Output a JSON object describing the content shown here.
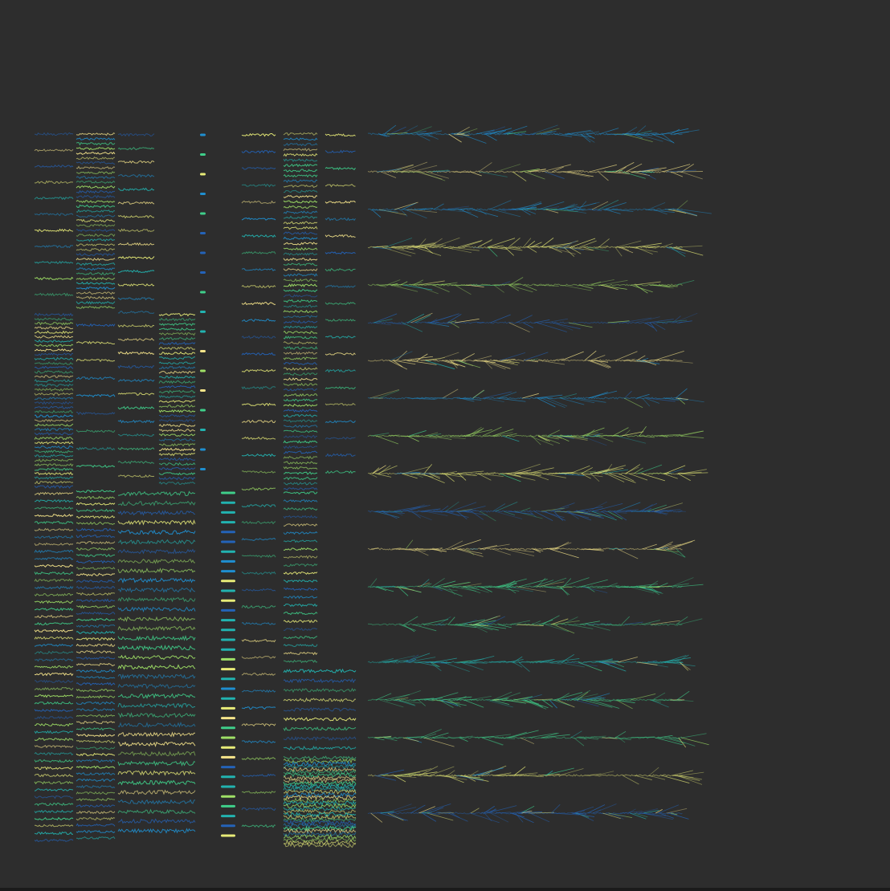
{
  "background": "#2d2d2d",
  "palette": [
    "#2463b8",
    "#1f8fd0",
    "#22b3b0",
    "#3fcf8a",
    "#9fe066",
    "#e8ec78",
    "#f6e58a"
  ],
  "visualization": {
    "kind": "small-multiples-of-signal-traces",
    "panels": [
      "dense-trace-columns",
      "dot-columns",
      "wide-stroke-rows"
    ]
  }
}
